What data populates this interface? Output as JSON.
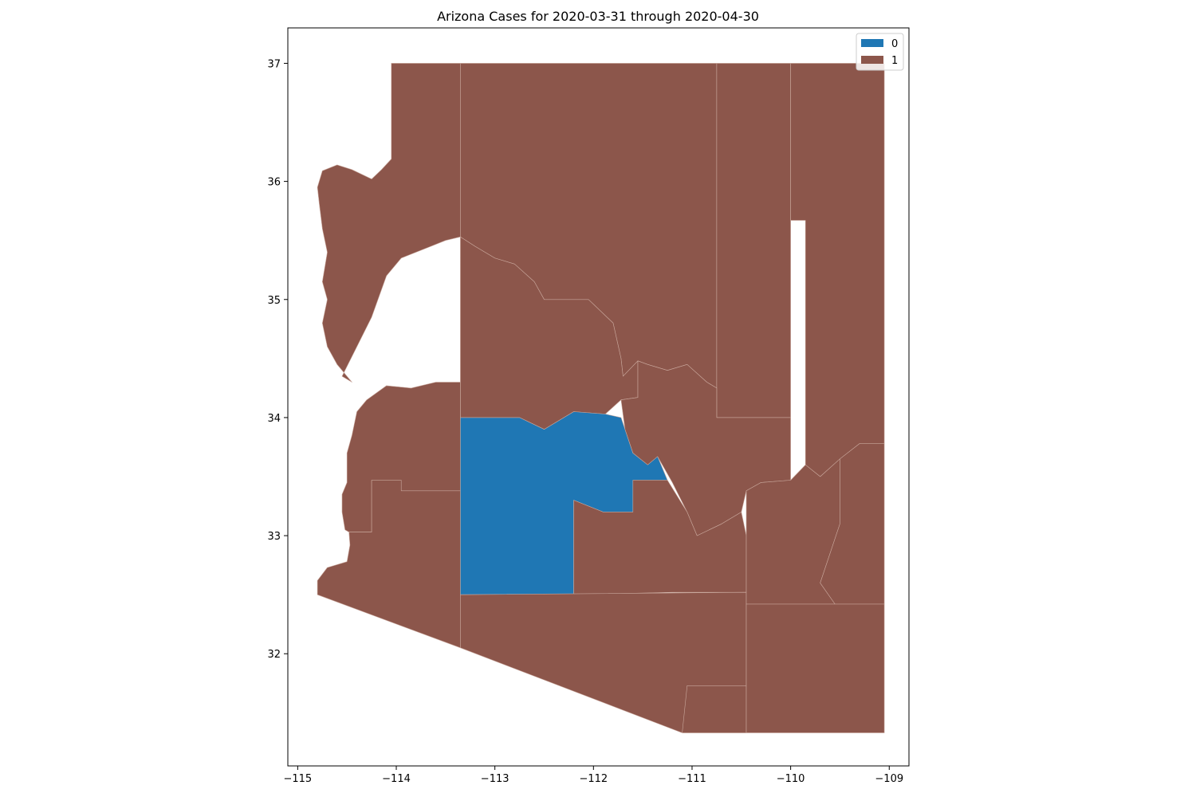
{
  "chart_data": {
    "type": "choropleth",
    "title": "Arizona Cases for 2020-03-31 through 2020-04-30",
    "xlabel": "",
    "ylabel": "",
    "xlim": [
      -115.1,
      -108.8
    ],
    "ylim": [
      31.05,
      37.3
    ],
    "x_ticks": [
      -115,
      -114,
      -113,
      -112,
      -111,
      -110,
      -109
    ],
    "x_tick_labels": [
      "−115",
      "−114",
      "−113",
      "−112",
      "−111",
      "−110",
      "−109"
    ],
    "y_ticks": [
      32,
      33,
      34,
      35,
      36,
      37
    ],
    "y_tick_labels": [
      "32",
      "33",
      "34",
      "35",
      "36",
      "37"
    ],
    "grid": false,
    "legend": {
      "placement": "top-right",
      "entries": [
        {
          "label": "0",
          "color": "#1f77b4"
        },
        {
          "label": "1",
          "color": "#8c564b"
        }
      ]
    },
    "regions": [
      {
        "id": "mohave",
        "category": 1,
        "coords": [
          [
            -114.05,
            37.0
          ],
          [
            -113.35,
            37.0
          ],
          [
            -113.35,
            35.53
          ],
          [
            -113.4,
            35.52
          ],
          [
            -113.5,
            35.5
          ],
          [
            -113.65,
            35.45
          ],
          [
            -113.95,
            35.35
          ],
          [
            -114.1,
            35.2
          ],
          [
            -114.25,
            34.85
          ],
          [
            -114.4,
            34.6
          ],
          [
            -114.55,
            34.35
          ],
          [
            -114.45,
            34.3
          ],
          [
            -114.6,
            34.45
          ],
          [
            -114.7,
            34.6
          ],
          [
            -114.75,
            34.8
          ],
          [
            -114.7,
            35.0
          ],
          [
            -114.75,
            35.15
          ],
          [
            -114.7,
            35.4
          ],
          [
            -114.75,
            35.6
          ],
          [
            -114.78,
            35.8
          ],
          [
            -114.8,
            35.95
          ],
          [
            -114.75,
            36.09
          ],
          [
            -114.6,
            36.14
          ],
          [
            -114.45,
            36.1
          ],
          [
            -114.25,
            36.02
          ],
          [
            -114.15,
            36.1
          ],
          [
            -114.05,
            36.19
          ],
          [
            -114.05,
            37.0
          ]
        ]
      },
      {
        "id": "coconino",
        "category": 1,
        "coords": [
          [
            -113.35,
            37.0
          ],
          [
            -110.75,
            37.0
          ],
          [
            -110.75,
            34.25
          ],
          [
            -110.85,
            34.3
          ],
          [
            -111.05,
            34.45
          ],
          [
            -111.25,
            34.4
          ],
          [
            -111.45,
            34.45
          ],
          [
            -111.55,
            34.48
          ],
          [
            -111.7,
            34.35
          ],
          [
            -111.72,
            34.5
          ],
          [
            -111.8,
            34.8
          ],
          [
            -112.05,
            35.0
          ],
          [
            -112.5,
            35.0
          ],
          [
            -112.6,
            35.15
          ],
          [
            -112.8,
            35.3
          ],
          [
            -113.0,
            35.35
          ],
          [
            -113.2,
            35.45
          ],
          [
            -113.35,
            35.53
          ],
          [
            -113.35,
            37.0
          ]
        ]
      },
      {
        "id": "navajo",
        "category": 1,
        "coords": [
          [
            -110.75,
            37.0
          ],
          [
            -110.0,
            37.0
          ],
          [
            -110.0,
            34.0
          ],
          [
            -110.75,
            34.0
          ],
          [
            -110.75,
            37.0
          ]
        ]
      },
      {
        "id": "apache",
        "category": 1,
        "coords": [
          [
            -110.0,
            37.0
          ],
          [
            -109.05,
            37.0
          ],
          [
            -109.05,
            33.78
          ],
          [
            -109.3,
            33.78
          ],
          [
            -109.5,
            33.65
          ],
          [
            -109.7,
            33.5
          ],
          [
            -109.85,
            33.6
          ],
          [
            -109.85,
            34.3
          ],
          [
            -109.85,
            35.67
          ],
          [
            -110.0,
            35.67
          ],
          [
            -110.0,
            37.0
          ]
        ]
      },
      {
        "id": "yavapai",
        "category": 1,
        "coords": [
          [
            -113.35,
            35.53
          ],
          [
            -113.2,
            35.45
          ],
          [
            -113.0,
            35.35
          ],
          [
            -112.8,
            35.3
          ],
          [
            -112.6,
            35.15
          ],
          [
            -112.5,
            35.0
          ],
          [
            -112.05,
            35.0
          ],
          [
            -111.8,
            34.8
          ],
          [
            -111.72,
            34.5
          ],
          [
            -111.7,
            34.35
          ],
          [
            -111.55,
            34.48
          ],
          [
            -111.55,
            34.17
          ],
          [
            -111.72,
            34.15
          ],
          [
            -111.88,
            34.03
          ],
          [
            -112.2,
            34.05
          ],
          [
            -112.5,
            33.9
          ],
          [
            -112.75,
            34.0
          ],
          [
            -113.35,
            34.0
          ],
          [
            -113.35,
            34.3
          ],
          [
            -113.35,
            35.53
          ]
        ]
      },
      {
        "id": "la-paz",
        "category": 1,
        "coords": [
          [
            -113.35,
            34.3
          ],
          [
            -113.35,
            34.0
          ],
          [
            -113.35,
            33.38
          ],
          [
            -113.95,
            33.38
          ],
          [
            -113.95,
            33.47
          ],
          [
            -114.25,
            33.47
          ],
          [
            -114.25,
            33.03
          ],
          [
            -114.48,
            33.03
          ],
          [
            -114.52,
            33.05
          ],
          [
            -114.55,
            33.2
          ],
          [
            -114.55,
            33.35
          ],
          [
            -114.5,
            33.45
          ],
          [
            -114.5,
            33.7
          ],
          [
            -114.45,
            33.85
          ],
          [
            -114.4,
            34.05
          ],
          [
            -114.3,
            34.15
          ],
          [
            -114.1,
            34.27
          ],
          [
            -113.85,
            34.25
          ],
          [
            -113.6,
            34.3
          ],
          [
            -113.35,
            34.3
          ]
        ]
      },
      {
        "id": "yuma",
        "category": 1,
        "coords": [
          [
            -113.35,
            33.38
          ],
          [
            -113.35,
            32.05
          ],
          [
            -114.8,
            32.5
          ],
          [
            -114.8,
            32.62
          ],
          [
            -114.7,
            32.73
          ],
          [
            -114.5,
            32.78
          ],
          [
            -114.47,
            32.92
          ],
          [
            -114.48,
            33.03
          ],
          [
            -114.25,
            33.03
          ],
          [
            -114.25,
            33.47
          ],
          [
            -113.95,
            33.47
          ],
          [
            -113.95,
            33.38
          ],
          [
            -113.35,
            33.38
          ]
        ]
      },
      {
        "id": "maricopa",
        "category": 0,
        "coords": [
          [
            -113.35,
            34.0
          ],
          [
            -112.75,
            34.0
          ],
          [
            -112.5,
            33.9
          ],
          [
            -112.2,
            34.05
          ],
          [
            -111.88,
            34.03
          ],
          [
            -111.72,
            34.0
          ],
          [
            -111.68,
            33.9
          ],
          [
            -111.6,
            33.7
          ],
          [
            -111.45,
            33.6
          ],
          [
            -111.35,
            33.67
          ],
          [
            -111.25,
            33.47
          ],
          [
            -111.6,
            33.47
          ],
          [
            -111.6,
            33.2
          ],
          [
            -111.9,
            33.2
          ],
          [
            -112.2,
            33.3
          ],
          [
            -112.2,
            32.5
          ],
          [
            -113.35,
            32.5
          ],
          [
            -113.35,
            34.0
          ]
        ]
      },
      {
        "id": "gila",
        "category": 1,
        "coords": [
          [
            -111.55,
            34.17
          ],
          [
            -111.55,
            34.48
          ],
          [
            -111.45,
            34.45
          ],
          [
            -111.25,
            34.4
          ],
          [
            -111.05,
            34.45
          ],
          [
            -110.85,
            34.3
          ],
          [
            -110.75,
            34.25
          ],
          [
            -110.75,
            34.0
          ],
          [
            -110.0,
            34.0
          ],
          [
            -110.0,
            33.47
          ],
          [
            -110.3,
            33.45
          ],
          [
            -110.45,
            33.38
          ],
          [
            -110.5,
            33.2
          ],
          [
            -110.7,
            33.1
          ],
          [
            -110.95,
            33.0
          ],
          [
            -111.05,
            33.2
          ],
          [
            -111.2,
            33.45
          ],
          [
            -111.35,
            33.67
          ],
          [
            -111.45,
            33.6
          ],
          [
            -111.6,
            33.7
          ],
          [
            -111.68,
            33.9
          ],
          [
            -111.72,
            34.15
          ],
          [
            -111.55,
            34.17
          ]
        ]
      },
      {
        "id": "pinal",
        "category": 1,
        "coords": [
          [
            -112.2,
            33.3
          ],
          [
            -111.9,
            33.2
          ],
          [
            -111.6,
            33.2
          ],
          [
            -111.6,
            33.47
          ],
          [
            -111.25,
            33.47
          ],
          [
            -111.05,
            33.2
          ],
          [
            -110.95,
            33.0
          ],
          [
            -110.7,
            33.1
          ],
          [
            -110.5,
            33.2
          ],
          [
            -110.45,
            33.0
          ],
          [
            -110.45,
            32.52
          ],
          [
            -111.2,
            32.52
          ],
          [
            -112.2,
            32.5
          ],
          [
            -112.2,
            33.3
          ]
        ]
      },
      {
        "id": "pima",
        "category": 1,
        "coords": [
          [
            -113.35,
            32.5
          ],
          [
            -110.45,
            32.52
          ],
          [
            -110.45,
            31.33
          ],
          [
            -111.1,
            31.33
          ],
          [
            -113.35,
            32.05
          ],
          [
            -113.35,
            32.5
          ]
        ]
      },
      {
        "id": "santa-cruz",
        "category": 1,
        "coords": [
          [
            -111.05,
            31.73
          ],
          [
            -110.45,
            31.73
          ],
          [
            -110.45,
            31.33
          ],
          [
            -111.1,
            31.33
          ],
          [
            -111.05,
            31.73
          ]
        ]
      },
      {
        "id": "graham",
        "category": 1,
        "coords": [
          [
            -110.45,
            33.38
          ],
          [
            -110.45,
            32.42
          ],
          [
            -109.55,
            32.42
          ],
          [
            -109.7,
            32.6
          ],
          [
            -109.5,
            33.1
          ],
          [
            -109.5,
            33.65
          ],
          [
            -109.7,
            33.5
          ],
          [
            -109.85,
            33.6
          ],
          [
            -110.0,
            33.47
          ],
          [
            -110.3,
            33.45
          ],
          [
            -110.45,
            33.38
          ]
        ]
      },
      {
        "id": "greenlee",
        "category": 1,
        "coords": [
          [
            -109.5,
            33.65
          ],
          [
            -109.5,
            33.1
          ],
          [
            -109.7,
            32.6
          ],
          [
            -109.55,
            32.42
          ],
          [
            -109.05,
            32.42
          ],
          [
            -109.05,
            33.78
          ],
          [
            -109.3,
            33.78
          ],
          [
            -109.5,
            33.65
          ]
        ]
      },
      {
        "id": "cochise",
        "category": 1,
        "coords": [
          [
            -110.45,
            32.42
          ],
          [
            -109.05,
            32.42
          ],
          [
            -109.05,
            31.33
          ],
          [
            -110.45,
            31.33
          ],
          [
            -110.45,
            32.42
          ]
        ]
      }
    ]
  }
}
